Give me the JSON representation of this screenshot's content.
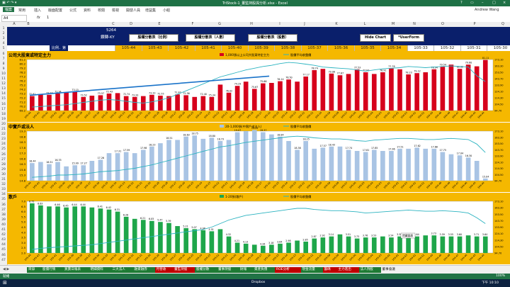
{
  "window": {
    "title": "TriStock-1_董監持股與分析.xlsx - Excel",
    "controls": [
      "?",
      "▭",
      "–",
      "□",
      "×"
    ]
  },
  "ribbon": {
    "file": "檔案",
    "tabs": [
      "常用",
      "插入",
      "版面配置",
      "公式",
      "資料",
      "校閱",
      "檢視",
      "開發人員",
      "增益集",
      "小組"
    ],
    "account": "Andrew Wang"
  },
  "formula_bar": {
    "name_box": "A4",
    "fx": "fx",
    "value": "1"
  },
  "columns": [
    "A",
    "B",
    "C",
    "D",
    "E",
    "F",
    "G",
    "H",
    "I",
    "J",
    "K",
    "L",
    "M",
    "N",
    "O",
    "P",
    "Q"
  ],
  "rows": [
    "1",
    "2",
    "3",
    "4",
    "5",
    "6",
    "7",
    "8",
    "9",
    "10",
    "11",
    "12",
    "13",
    "14",
    "15",
    "16",
    "17",
    "18",
    "19",
    "20",
    "21",
    "22",
    "23",
    "24",
    "25",
    "26",
    "27",
    "28",
    "29",
    "30",
    "31",
    "32",
    "33",
    "34",
    "35",
    "36",
    "37",
    "38",
    "39",
    "40",
    "41",
    "42",
    "43",
    "44",
    "45",
    "46",
    "47"
  ],
  "header": {
    "stock_code": "5264",
    "stock_name": "鑽轉-KY",
    "buttons": [
      "股權分散表（比例）",
      "股權分散表（人數）",
      "股權分散表（股數）",
      "Hide Chart",
      "*UserForm"
    ],
    "ratio_label": "比例．第",
    "years": [
      "105-44",
      "105-43",
      "105-42",
      "105-41",
      "105-40",
      "105-39",
      "105-38",
      "105-37",
      "105-36",
      "105-35",
      "105-34",
      "105-33",
      "105-32",
      "105-31",
      "105-30"
    ],
    "highlight_color": "#f5b800"
  },
  "panels": [
    {
      "title": "公司大股東或特定主力",
      "legend_bar": "1,000張以上公司大股東特定主力",
      "legend_line": "股價平均收盤價",
      "bar_color": "#d6001c",
      "y_left": [
        "81.2",
        "80.2",
        "79.2",
        "78.2",
        "77.2",
        "76.2",
        "75.2",
        "74.2",
        "73.2",
        "72.2",
        "71.2",
        "70.2",
        "69.2"
      ],
      "y_right": [
        "173.10",
        "163.30",
        "153.50",
        "143.70",
        "133.90",
        "124.10",
        "114.30",
        "104.50",
        "94.70"
      ]
    },
    {
      "title": "中實戶或法人",
      "legend_bar": "20-1,000張(中實戶或法人)",
      "legend_line": "股價平均收盤價",
      "bar_color": "#a9c4e4",
      "y_left": [
        "19.3",
        "18.8",
        "18.3",
        "17.8",
        "17.3",
        "16.8",
        "16.3",
        "15.8",
        "15.3",
        "14.8"
      ],
      "y_right": [
        "173.10",
        "163.30",
        "153.50",
        "143.70",
        "133.90",
        "124.10",
        "114.30",
        "104.50",
        "94.70"
      ]
    },
    {
      "title": "散戶",
      "legend_bar": "1-20張(散戶)",
      "legend_line": "股價平均收盤價",
      "bar_color": "#1ea64a",
      "y_left": [
        "7.0",
        "6.5",
        "6.0",
        "5.5",
        "5.0",
        "4.5",
        "4.0",
        "3.5",
        "3.0",
        "2.5",
        "2.0"
      ],
      "y_right": [
        "173.10",
        "163.30",
        "153.50",
        "143.70",
        "133.90",
        "124.10",
        "114.30",
        "104.50",
        "94.70"
      ]
    }
  ],
  "chart_data": [
    {
      "type": "bar",
      "title": "公司大股東或特定主力",
      "series": [
        {
          "name": "1,000張以上公司大股東特定主力",
          "values": [
            72.6,
            73.0,
            72.9,
            73.2,
            73.5,
            73.6,
            72.4,
            72.7,
            72.8,
            73.2,
            73.3,
            72.6,
            72.4,
            72.6,
            72.9,
            72.7,
            72.6,
            73.0,
            72.8,
            72.4,
            72.6,
            72.4,
            75.3,
            73.4,
            75.0,
            76.0,
            74.3,
            75.6,
            75.7,
            76.1,
            76.5,
            76.0,
            77.2,
            78.7,
            79.0,
            77.9,
            77.5,
            77.8,
            78.9,
            78.2,
            77.8,
            78.2,
            79.1,
            78.9,
            77.7,
            78.0,
            78.2,
            78.9,
            79.5,
            80.0,
            79.0,
            80.0,
            79.6,
            81.1
          ]
        },
        {
          "name": "股價平均收盤價",
          "values": [
            96,
            97,
            98,
            99,
            100,
            102,
            104,
            106,
            108,
            109,
            108,
            106,
            104,
            103,
            105,
            108,
            112,
            118,
            124,
            130,
            136,
            142,
            148,
            152,
            156,
            160,
            163,
            166,
            168,
            171,
            173,
            172,
            170,
            168,
            165,
            164,
            163,
            162,
            160,
            158,
            160,
            162,
            163,
            164,
            166,
            165,
            164,
            165,
            166,
            167,
            166,
            165,
            150,
            140
          ]
        }
      ],
      "value_labels": [
        "72.61",
        "73.03",
        "72.94",
        "73.15",
        "73.52",
        "73.57",
        "72.43",
        "72.74",
        "73.20",
        "73.33",
        "72.55",
        "72.42",
        "72.56",
        "72.40",
        "75.34",
        "76.02",
        "74.29",
        "75.67",
        "75.66",
        "76.14",
        "76.50",
        "77.17",
        "78.74",
        "79.08",
        "77.87",
        "77.53",
        "77.84",
        "78.91",
        "77.78",
        "78.23",
        "79.12",
        "78.94",
        "79.54",
        "80.02",
        "79.60",
        "81.11"
      ],
      "ylim": [
        69.2,
        81.2
      ]
    },
    {
      "type": "bar",
      "title": "中實戶或法人",
      "series": [
        {
          "name": "20-1,000張(中實戶或法人)",
          "values": [
            16.4,
            16.5,
            16.3,
            16.5,
            16.1,
            16.2,
            16.2,
            16.6,
            16.7,
            17.3,
            17.3,
            17.4,
            17.3,
            17.6,
            17.9,
            18.2,
            18.5,
            18.5,
            18.8,
            18.9,
            18.6,
            18.7,
            18.4,
            18.5,
            19.2,
            19.3,
            19.4,
            19.2,
            19.0,
            18.8,
            18.4,
            17.6,
            18.4,
            17.7,
            17.8,
            17.9,
            17.9,
            17.6,
            17.5,
            17.4,
            17.6,
            17.5,
            17.5,
            17.7,
            17.7,
            17.8,
            17.7,
            17.7,
            17.4,
            17.2,
            17.1,
            16.9,
            16.6,
            15.0
          ]
        },
        {
          "name": "股價平均收盤價",
          "values": [
            96,
            97,
            98,
            100,
            100,
            101,
            102,
            104,
            106,
            107,
            108,
            110,
            112,
            115,
            118,
            122,
            126,
            130,
            134,
            138,
            142,
            146,
            150,
            152,
            155,
            158,
            160,
            162,
            164,
            166,
            168,
            169,
            168,
            166,
            165,
            164,
            164,
            163,
            161,
            160,
            162,
            163,
            164,
            165,
            165,
            164,
            163,
            163,
            164,
            165,
            164,
            163,
            155,
            140
          ]
        }
      ],
      "value_labels": [
        "16.44",
        "16.51",
        "16.33",
        "15.99",
        "17.27",
        "17.26",
        "17.31",
        "17.59",
        "17.98",
        "18.23",
        "18.51",
        "18.63",
        "18.75",
        "18.80",
        "18.73",
        "19.07",
        "19.25",
        "19.37",
        "18.84",
        "18.38",
        "18.25",
        "17.57",
        "18.43",
        "17.74",
        "17.81",
        "17.85",
        "17.96",
        "17.51",
        "17.62",
        "17.68",
        "17.75",
        "17.04",
        "16.30",
        "15.04"
      ],
      "ylim": [
        14.8,
        19.3
      ]
    },
    {
      "type": "bar",
      "title": "散戶",
      "series": [
        {
          "name": "1-20張(散戶)",
          "values": [
            6.8,
            6.6,
            6.5,
            6.5,
            6.4,
            6.5,
            6.5,
            6.4,
            6.3,
            6.2,
            6.0,
            5.5,
            5.3,
            5.2,
            5.1,
            5.0,
            4.9,
            4.6,
            4.4,
            4.3,
            4.2,
            4.1,
            4.3,
            3.6,
            3.0,
            2.9,
            2.8,
            2.7,
            2.8,
            2.9,
            3.0,
            3.2,
            3.1,
            3.4,
            3.5,
            3.6,
            3.8,
            3.6,
            3.4,
            3.5,
            3.5,
            3.6,
            3.5,
            3.6,
            3.6,
            3.6,
            3.7,
            3.7,
            3.6,
            3.6,
            3.6,
            3.7,
            3.6,
            3.6
          ]
        },
        {
          "name": "股價平均收盤價",
          "values": [
            96,
            98,
            99,
            100,
            101,
            102,
            103,
            104,
            106,
            108,
            110,
            112,
            114,
            116,
            118,
            120,
            122,
            124,
            126,
            128,
            130,
            134,
            140,
            146,
            150,
            154,
            156,
            158,
            160,
            162,
            164,
            166,
            166,
            164,
            163,
            162,
            162,
            161,
            160,
            158,
            159,
            160,
            161,
            162,
            163,
            162,
            161,
            161,
            162,
            161,
            160,
            158,
            150,
            140
          ]
        }
      ],
      "value_labels": [
        "6.75",
        "6.63",
        "6.46",
        "6.45",
        "6.44",
        "6.44",
        "6.41",
        "6.42",
        "6.31",
        "6.28",
        "6.21",
        "6.05",
        "5.47",
        "5.39",
        "5.21",
        "5.07",
        "4.98",
        "4.51",
        "4.32",
        "4.21",
        "4.13",
        "4.26",
        "3.18",
        "3.64",
        "2.98",
        "2.85",
        "2.87",
        "2.92",
        "3.14",
        "3.51",
        "3.73",
        "3.76",
        "3.53",
        "3.54",
        "3.58",
        "3.61",
        "3.64",
        "3.73",
        "3.59",
        "3.55",
        "3.60",
        "3.71",
        "3.64"
      ],
      "ylim": [
        2.0,
        7.0
      ],
      "annotation": "隱藏圖表"
    }
  ],
  "x_labels": [
    "105-44",
    "105-43",
    "105-42",
    "105-41",
    "105-40",
    "105-39",
    "105-38",
    "105-37",
    "105-36",
    "105-35",
    "105-34",
    "105-33",
    "105-32",
    "105-31",
    "105-30",
    "105-29",
    "105-28",
    "105-27",
    "105-26",
    "105-25",
    "105-24",
    "105-23",
    "105-22",
    "105-21",
    "105-20",
    "105-19",
    "105-18",
    "105-17",
    "105-16",
    "105-15",
    "105-14",
    "105-13",
    "105-12",
    "105-11",
    "105-10",
    "105-09",
    "105-08",
    "105-07",
    "105-06",
    "105-05",
    "105-04",
    "105-03",
    "105-02",
    "105-01",
    "104-53",
    "104-52",
    "104-51",
    "104-50",
    "104-49",
    "104-48",
    "104-47",
    "104-46",
    "104-45",
    "104-44"
  ],
  "sheet_tabs": [
    {
      "label": "目錄",
      "color": "#1e7b34"
    },
    {
      "label": "股價行情",
      "color": "#1e7b34"
    },
    {
      "label": "買賣日報表",
      "color": "#1e7b34"
    },
    {
      "label": "明細資料",
      "color": "#1e7b34"
    },
    {
      "label": "三大法人",
      "color": "#1e7b34"
    },
    {
      "label": "融資融券",
      "color": "#1e7b34"
    },
    {
      "label": "月營收",
      "color": "#c00000"
    },
    {
      "label": "董監持股",
      "color": "#c00000"
    },
    {
      "label": "股權分散",
      "color": "#1e7b34"
    },
    {
      "label": "董事持股",
      "color": "#1e7b34"
    },
    {
      "label": "財報",
      "color": "#1e7b34"
    },
    {
      "label": "資產負債",
      "color": "#1e7b34"
    },
    {
      "label": "ROE分析",
      "color": "#c00000"
    },
    {
      "label": "現金流量",
      "color": "#1e7b34"
    },
    {
      "label": "籌碼",
      "color": "#c00000"
    },
    {
      "label": "主力進出",
      "color": "#c00000"
    },
    {
      "label": "法人持股",
      "color": "#1e7b34"
    },
    {
      "label": "董事會議",
      "color": "#f0f0f0"
    }
  ],
  "status": {
    "left": "就緒",
    "zoom": "100%"
  },
  "taskbar": {
    "items": [
      "Dropbox"
    ],
    "time": "下午 10:10"
  }
}
